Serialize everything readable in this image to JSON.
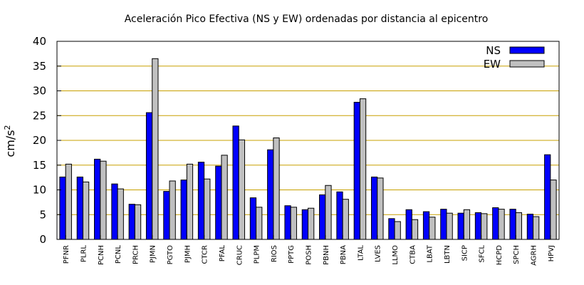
{
  "chart_data": {
    "type": "bar",
    "title": "Aceleración Pico Efectiva (NS y EW) ordenadas por distancia al epicentro",
    "ylabel": "cm/s",
    "ylabel_superscript": "2",
    "xlabel": "",
    "ylim": [
      0,
      40
    ],
    "yticks": [
      "0",
      "5",
      "10",
      "15",
      "20",
      "25",
      "30",
      "35",
      "40"
    ],
    "grid": "horizontal",
    "legend_position": "top-right",
    "categories": [
      "PFNR",
      "PLRL",
      "PCNH",
      "PCNL",
      "PRCH",
      "PJMN",
      "PGTO",
      "PJMH",
      "CTCR",
      "PFAL",
      "CRUC",
      "PLPM",
      "RIOS",
      "PPTG",
      "POSH",
      "PBNH",
      "PBNA",
      "LTAL",
      "LVES",
      "LLMO",
      "CTBA",
      "LBAT",
      "LBTN",
      "SICP",
      "SFCL",
      "HCPD",
      "SPCH",
      "AGRH",
      "HPVJ"
    ],
    "series": [
      {
        "name": "NS",
        "color": "#0000ff",
        "values": [
          12.6,
          12.6,
          16.2,
          11.2,
          7.1,
          25.6,
          9.7,
          12.0,
          15.6,
          14.8,
          22.9,
          8.4,
          18.1,
          6.8,
          6.0,
          9.0,
          9.6,
          27.7,
          12.6,
          4.2,
          6.0,
          5.6,
          6.1,
          5.3,
          5.4,
          6.4,
          6.1,
          5.1,
          17.1
        ]
      },
      {
        "name": "EW",
        "color": "#c0c0c0",
        "values": [
          15.2,
          11.6,
          15.8,
          10.2,
          7.0,
          36.5,
          11.8,
          15.2,
          12.2,
          17.0,
          20.1,
          6.5,
          20.5,
          6.5,
          6.3,
          10.9,
          8.1,
          28.4,
          12.4,
          3.6,
          4.0,
          4.5,
          5.3,
          6.0,
          5.2,
          6.1,
          5.4,
          4.6,
          12.0
        ]
      }
    ]
  }
}
